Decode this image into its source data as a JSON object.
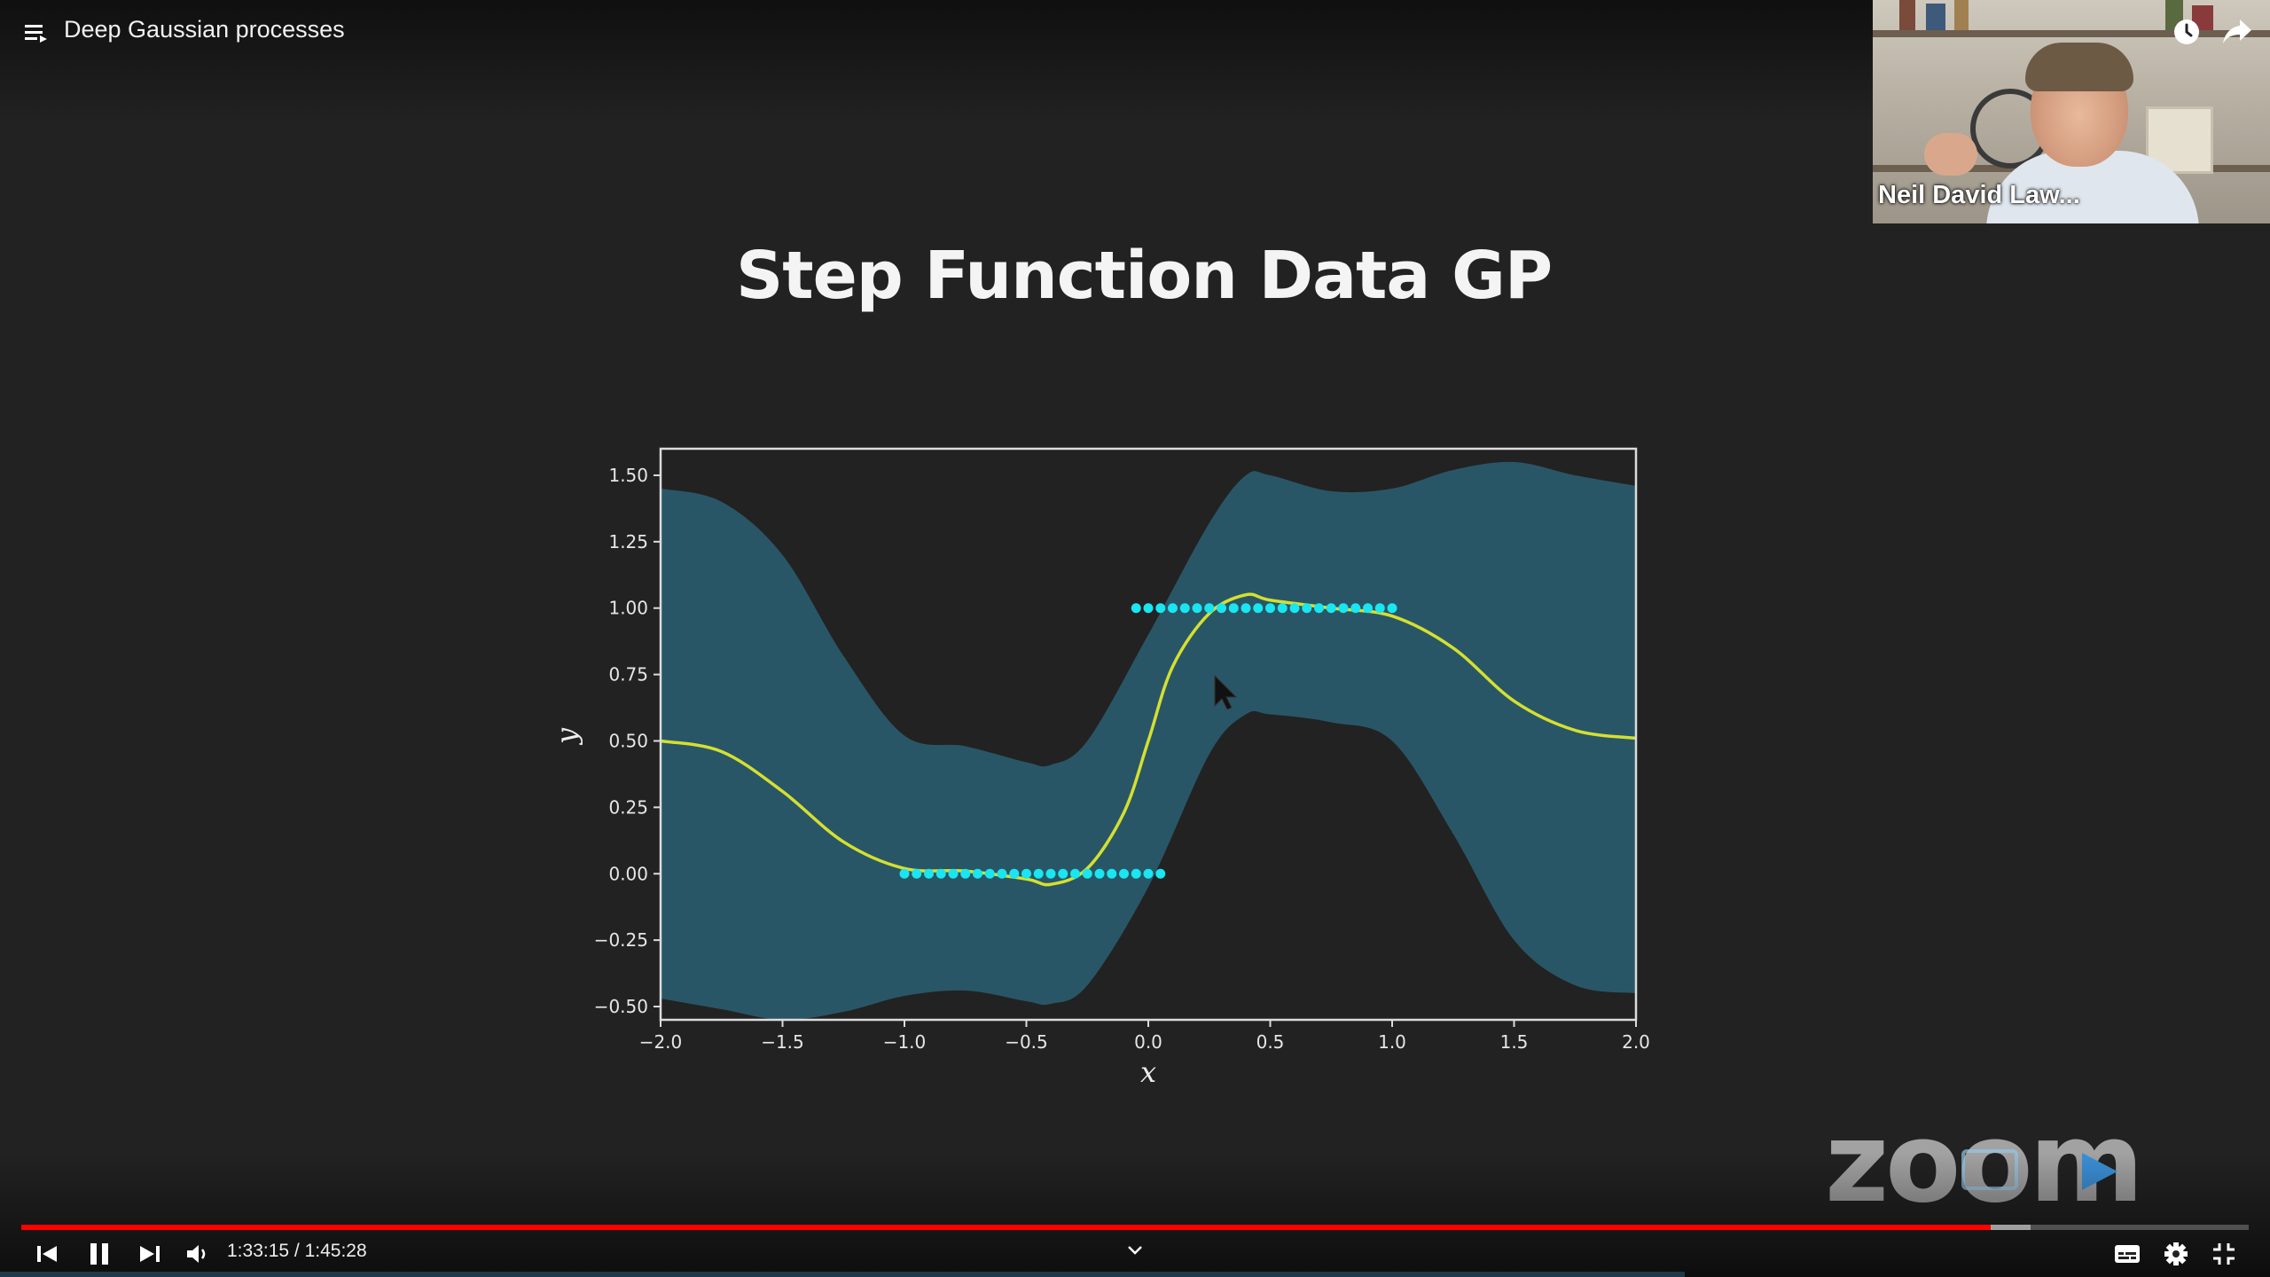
{
  "header": {
    "video_title": "Deep Gaussian processes",
    "playlist_icon": "playlist-icon",
    "watch_later_icon": "clock-icon",
    "share_icon": "share-icon"
  },
  "webcam": {
    "speaker_name": "Neil David Law..."
  },
  "slide": {
    "title": "Step Function Data GP"
  },
  "chart_data": {
    "type": "line",
    "title": "",
    "xlabel": "x",
    "ylabel": "y",
    "xlim": [
      -2.0,
      2.0
    ],
    "ylim": [
      -0.55,
      1.6
    ],
    "x_ticks": [
      "−2.0",
      "−1.5",
      "−1.0",
      "−0.5",
      "0.0",
      "0.5",
      "1.0",
      "1.5",
      "2.0"
    ],
    "x_tick_values": [
      -2.0,
      -1.5,
      -1.0,
      -0.5,
      0.0,
      0.5,
      1.0,
      1.5,
      2.0
    ],
    "y_ticks": [
      "−0.50",
      "−0.25",
      "0.00",
      "0.25",
      "0.50",
      "0.75",
      "1.00",
      "1.25",
      "1.50"
    ],
    "y_tick_values": [
      -0.5,
      -0.25,
      0.0,
      0.25,
      0.5,
      0.75,
      1.0,
      1.25,
      1.5
    ],
    "grid": false,
    "colors": {
      "plot_background": "#222222",
      "band_fill": "#2a5a6a",
      "mean_line": "#d4e030",
      "data_points": "#19e6f0",
      "axes": "#dcdcdc"
    },
    "series": [
      {
        "type": "mean",
        "x": [
          -2.0,
          -1.75,
          -1.5,
          -1.25,
          -1.0,
          -0.75,
          -0.5,
          -0.4,
          -0.25,
          -0.1,
          0.0,
          0.1,
          0.25,
          0.4,
          0.5,
          0.75,
          1.0,
          1.25,
          1.5,
          1.75,
          2.0
        ],
        "y": [
          0.5,
          0.46,
          0.31,
          0.12,
          0.02,
          0.01,
          -0.02,
          -0.04,
          0.02,
          0.23,
          0.5,
          0.78,
          0.98,
          1.05,
          1.03,
          1.0,
          0.97,
          0.85,
          0.65,
          0.54,
          0.51
        ]
      },
      {
        "type": "upper_band",
        "x": [
          -2.0,
          -1.75,
          -1.5,
          -1.25,
          -1.0,
          -0.75,
          -0.5,
          -0.4,
          -0.25,
          0.0,
          0.25,
          0.4,
          0.5,
          0.75,
          1.0,
          1.25,
          1.5,
          1.75,
          2.0
        ],
        "y": [
          1.45,
          1.4,
          1.2,
          0.82,
          0.52,
          0.48,
          0.42,
          0.41,
          0.5,
          0.9,
          1.32,
          1.5,
          1.5,
          1.44,
          1.45,
          1.52,
          1.55,
          1.5,
          1.46
        ]
      },
      {
        "type": "lower_band",
        "x": [
          -2.0,
          -1.75,
          -1.5,
          -1.25,
          -1.0,
          -0.75,
          -0.5,
          -0.4,
          -0.25,
          0.0,
          0.25,
          0.4,
          0.5,
          0.75,
          1.0,
          1.25,
          1.5,
          1.75,
          2.0
        ],
        "y": [
          -0.47,
          -0.51,
          -0.55,
          -0.52,
          -0.46,
          -0.44,
          -0.48,
          -0.49,
          -0.42,
          -0.05,
          0.45,
          0.6,
          0.6,
          0.57,
          0.5,
          0.15,
          -0.25,
          -0.42,
          -0.45
        ]
      },
      {
        "type": "scatter",
        "x": [
          -1.0,
          -0.95,
          -0.9,
          -0.85,
          -0.8,
          -0.75,
          -0.7,
          -0.65,
          -0.6,
          -0.55,
          -0.5,
          -0.45,
          -0.4,
          -0.35,
          -0.3,
          -0.25,
          -0.2,
          -0.15,
          -0.1,
          -0.05,
          0.0,
          0.05
        ],
        "y": [
          0,
          0,
          0,
          0,
          0,
          0,
          0,
          0,
          0,
          0,
          0,
          0,
          0,
          0,
          0,
          0,
          0,
          0,
          0,
          0,
          0,
          0
        ]
      },
      {
        "type": "scatter",
        "x": [
          -0.05,
          0.0,
          0.05,
          0.1,
          0.15,
          0.2,
          0.25,
          0.3,
          0.35,
          0.4,
          0.45,
          0.5,
          0.55,
          0.6,
          0.65,
          0.7,
          0.75,
          0.8,
          0.85,
          0.9,
          0.95,
          1.0
        ],
        "y": [
          1,
          1,
          1,
          1,
          1,
          1,
          1,
          1,
          1,
          1,
          1,
          1,
          1,
          1,
          1,
          1,
          1,
          1,
          1,
          1,
          1,
          1
        ]
      }
    ]
  },
  "zoom_logo": {
    "text": "zoom"
  },
  "player": {
    "current_time": "1:33:15",
    "separator": " / ",
    "duration": "1:45:28",
    "time_text": "1:33:15 / 1:45:28",
    "played_fraction": 0.8841,
    "buffered_fraction": 0.9022,
    "bottom_strip_fraction": 0.742,
    "colors": {
      "progress_played": "#ff0000",
      "progress_buffer": "#9a9a9a"
    },
    "controls": {
      "previous_icon": "skip-previous-icon",
      "pause_icon": "pause-icon",
      "next_icon": "skip-next-icon",
      "volume_icon": "volume-icon",
      "chapter_icon": "chevron-down-icon",
      "captions_icon": "subtitles-icon",
      "settings_icon": "gear-icon",
      "fullscreen_icon": "exit-fullscreen-icon"
    }
  }
}
